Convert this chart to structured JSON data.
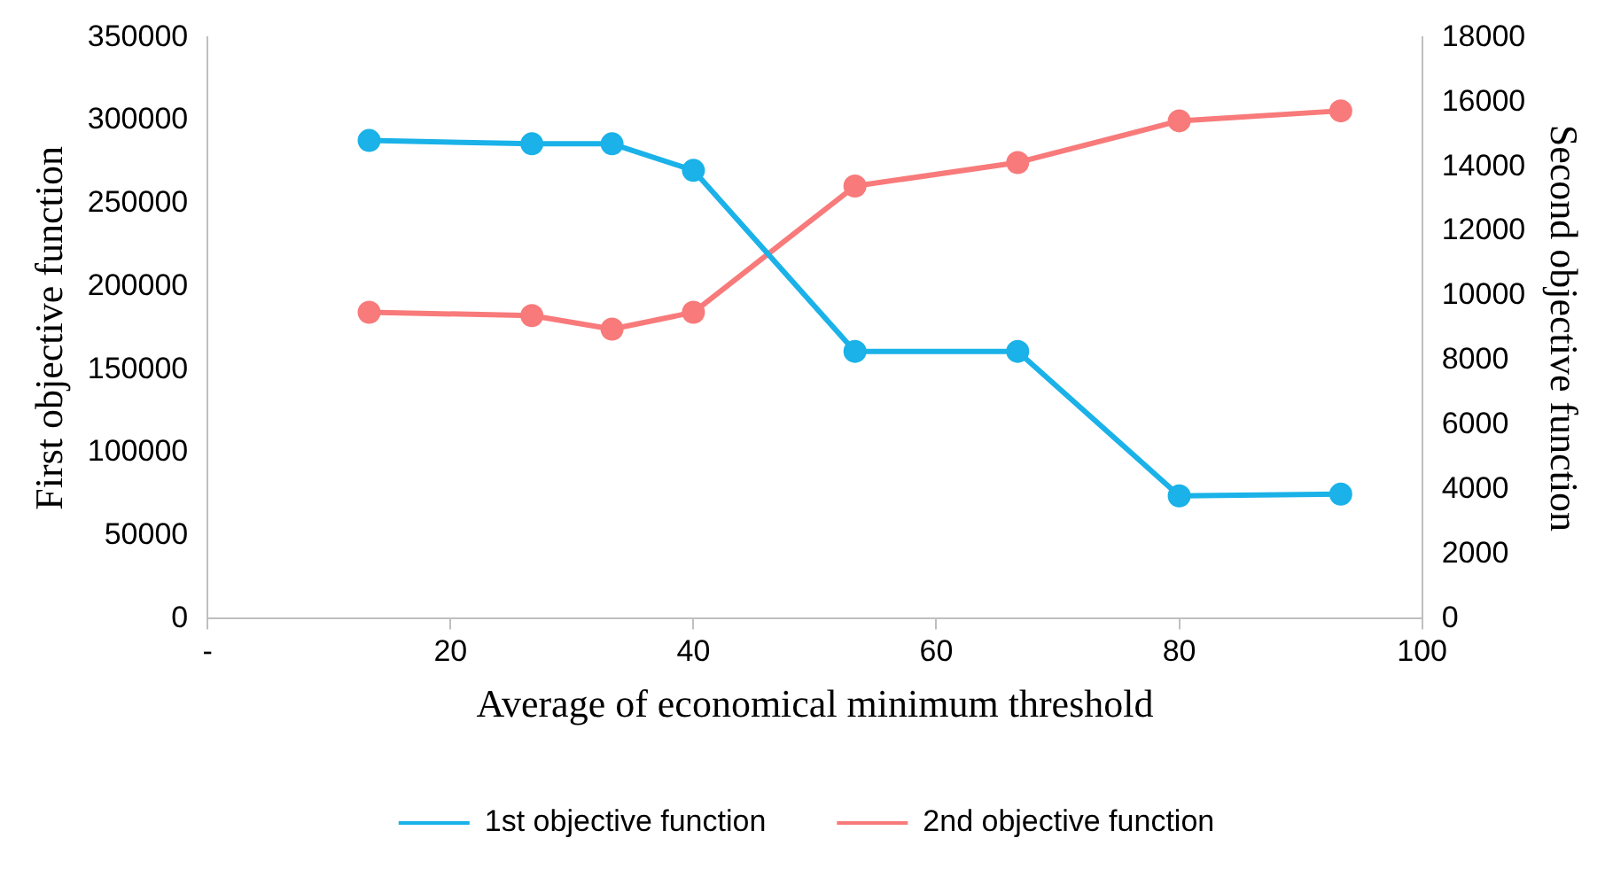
{
  "chart_data": {
    "type": "line",
    "xlabel": "Average of economical minimum threshold",
    "ylabel": "First objective function",
    "y2label": "Second objective function",
    "x": [
      13.3,
      26.7,
      33.3,
      40,
      53.3,
      66.7,
      80,
      93.3
    ],
    "xlim": [
      0,
      100
    ],
    "xticks": [
      {
        "value": 0,
        "label": "-"
      },
      20,
      40,
      60,
      80,
      100
    ],
    "ylim": [
      0,
      350000
    ],
    "yticks": [
      0,
      50000,
      100000,
      150000,
      200000,
      250000,
      300000,
      350000
    ],
    "y2lim": [
      0,
      18000
    ],
    "y2ticks": [
      0,
      2000,
      4000,
      6000,
      8000,
      10000,
      12000,
      14000,
      16000,
      18000
    ],
    "series": [
      {
        "name": "1st objective function",
        "color": "#1ab2e8",
        "values": [
          288000,
          286000,
          286000,
          270000,
          161000,
          161000,
          74000,
          75000
        ]
      },
      {
        "name": "2nd objective function",
        "color": "#f87a7a",
        "axis": "y2",
        "values": [
          9490,
          9390,
          8970,
          9490,
          13400,
          14130,
          15420,
          15730
        ]
      }
    ],
    "marker": "circle",
    "line_style": "solid",
    "grid": false,
    "legend": "bottom"
  }
}
